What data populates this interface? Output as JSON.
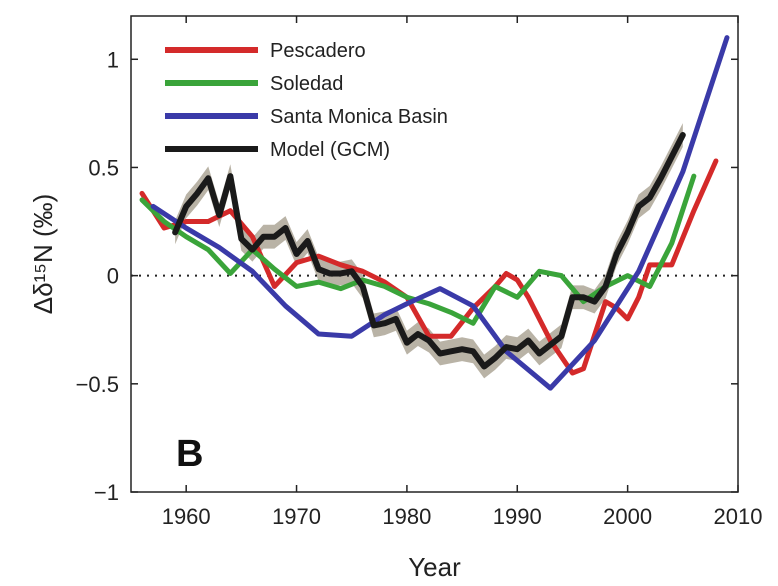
{
  "chart_data": {
    "type": "line",
    "panel_label": "B",
    "xlabel": "Year",
    "ylabel": "Δδ¹⁵N (‰)",
    "xlim": [
      1955,
      2010
    ],
    "ylim": [
      -1,
      1.2
    ],
    "xticks": [
      1960,
      1970,
      1980,
      1990,
      2000,
      2010
    ],
    "yticks": [
      -1,
      -0.5,
      0,
      0.5,
      1
    ],
    "ytick_labels": [
      "−1",
      "−0.5",
      "0",
      "0.5",
      "1"
    ],
    "zero_line": "dotted",
    "legend_position": "top-left",
    "series": [
      {
        "name": "Pescadero",
        "color": "#d42a2a",
        "x": [
          1956,
          1958,
          1960,
          1962,
          1964,
          1966,
          1968,
          1970,
          1972,
          1974,
          1976,
          1978,
          1980,
          1982,
          1984,
          1986,
          1988,
          1989,
          1990,
          1991,
          1993,
          1995,
          1996,
          1998,
          1999,
          2000,
          2001,
          2002,
          2004,
          2006,
          2008
        ],
        "y": [
          0.38,
          0.22,
          0.25,
          0.25,
          0.3,
          0.18,
          -0.05,
          0.06,
          0.09,
          0.05,
          0.02,
          -0.03,
          -0.1,
          -0.28,
          -0.28,
          -0.15,
          -0.05,
          0.01,
          -0.02,
          -0.1,
          -0.3,
          -0.45,
          -0.43,
          -0.12,
          -0.15,
          -0.2,
          -0.1,
          0.05,
          0.05,
          0.3,
          0.53
        ]
      },
      {
        "name": "Soledad",
        "color": "#3aa43a",
        "x": [
          1956,
          1958,
          1960,
          1962,
          1964,
          1966,
          1968,
          1970,
          1972,
          1974,
          1976,
          1978,
          1980,
          1982,
          1984,
          1986,
          1988,
          1990,
          1992,
          1994,
          1996,
          1998,
          2000,
          2002,
          2004,
          2006
        ],
        "y": [
          0.35,
          0.25,
          0.18,
          0.12,
          0.01,
          0.12,
          0.03,
          -0.05,
          -0.03,
          -0.06,
          -0.02,
          -0.05,
          -0.1,
          -0.13,
          -0.17,
          -0.22,
          -0.05,
          -0.1,
          0.02,
          0.0,
          -0.12,
          -0.05,
          0.0,
          -0.05,
          0.15,
          0.46
        ]
      },
      {
        "name": "Santa Monica Basin",
        "color": "#3a3aa8",
        "x": [
          1957,
          1960,
          1963,
          1966,
          1969,
          1972,
          1975,
          1978,
          1980,
          1983,
          1986,
          1989,
          1993,
          1997,
          2001,
          2005,
          2009
        ],
        "y": [
          0.32,
          0.22,
          0.13,
          0.02,
          -0.14,
          -0.27,
          -0.28,
          -0.18,
          -0.13,
          -0.06,
          -0.14,
          -0.35,
          -0.52,
          -0.3,
          0.02,
          0.48,
          1.1
        ]
      },
      {
        "name": "Model (GCM)",
        "color": "#1a1a1a",
        "band_color": "#b9b3a6",
        "band_half_width": 0.055,
        "x": [
          1959,
          1960,
          1961,
          1962,
          1963,
          1964,
          1965,
          1966,
          1967,
          1968,
          1969,
          1970,
          1971,
          1972,
          1973,
          1974,
          1975,
          1976,
          1977,
          1978,
          1979,
          1980,
          1981,
          1982,
          1983,
          1984,
          1985,
          1986,
          1987,
          1988,
          1989,
          1990,
          1991,
          1992,
          1993,
          1994,
          1995,
          1996,
          1997,
          1998,
          1999,
          2000,
          2001,
          2002,
          2003,
          2004,
          2005
        ],
        "y": [
          0.2,
          0.32,
          0.38,
          0.45,
          0.28,
          0.46,
          0.17,
          0.12,
          0.18,
          0.18,
          0.22,
          0.1,
          0.16,
          0.03,
          0.01,
          0.01,
          0.02,
          -0.05,
          -0.23,
          -0.22,
          -0.2,
          -0.31,
          -0.27,
          -0.3,
          -0.36,
          -0.35,
          -0.34,
          -0.35,
          -0.42,
          -0.38,
          -0.33,
          -0.34,
          -0.3,
          -0.36,
          -0.32,
          -0.28,
          -0.1,
          -0.1,
          -0.12,
          -0.05,
          0.1,
          0.2,
          0.32,
          0.36,
          0.45,
          0.55,
          0.65
        ]
      }
    ]
  }
}
